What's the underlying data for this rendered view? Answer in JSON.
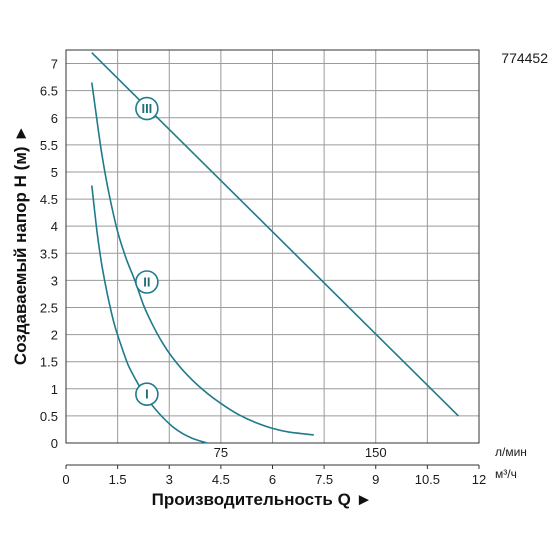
{
  "chart_data": {
    "type": "line",
    "figure_code": "774452",
    "xlabel": "Производительность Q ►",
    "ylabel": "Создаваемый напор H (м) ►",
    "xlim": [
      0,
      12
    ],
    "ylim": [
      0,
      7.25
    ],
    "x_ticks": [
      "0",
      "1.5",
      "3",
      "4.5",
      "6",
      "7.5",
      "9",
      "10.5",
      "12"
    ],
    "y_ticks": [
      "0",
      "0.5",
      "1",
      "1.5",
      "2",
      "2.5",
      "3",
      "3.5",
      "4",
      "4.5",
      "5",
      "5.5",
      "6",
      "6.5",
      "7"
    ],
    "secondary_x_ticks": [
      {
        "label": "75",
        "x": 4.5
      },
      {
        "label": "150",
        "x": 9
      }
    ],
    "secondary_unit": "л/мин",
    "primary_unit": "м³/ч",
    "grid": true,
    "line_color": "#1f7a8c",
    "series": [
      {
        "name": "I",
        "label_at": [
          2.35,
          0.9
        ],
        "points": [
          [
            0.75,
            4.75
          ],
          [
            0.9,
            3.9
          ],
          [
            1.05,
            3.25
          ],
          [
            1.2,
            2.75
          ],
          [
            1.4,
            2.2
          ],
          [
            1.6,
            1.8
          ],
          [
            1.8,
            1.45
          ],
          [
            2.0,
            1.2
          ],
          [
            2.25,
            0.92
          ],
          [
            2.5,
            0.7
          ],
          [
            2.8,
            0.48
          ],
          [
            3.1,
            0.3
          ],
          [
            3.4,
            0.17
          ],
          [
            3.7,
            0.08
          ],
          [
            4.1,
            0.0
          ]
        ]
      },
      {
        "name": "II",
        "label_at": [
          2.35,
          2.97
        ],
        "points": [
          [
            0.75,
            6.65
          ],
          [
            0.9,
            5.95
          ],
          [
            1.05,
            5.3
          ],
          [
            1.25,
            4.6
          ],
          [
            1.5,
            3.9
          ],
          [
            1.75,
            3.4
          ],
          [
            2.0,
            3.0
          ],
          [
            2.25,
            2.55
          ],
          [
            2.5,
            2.2
          ],
          [
            2.8,
            1.85
          ],
          [
            3.1,
            1.57
          ],
          [
            3.5,
            1.27
          ],
          [
            4.0,
            0.97
          ],
          [
            4.5,
            0.73
          ],
          [
            5.0,
            0.53
          ],
          [
            5.5,
            0.38
          ],
          [
            6.0,
            0.27
          ],
          [
            6.5,
            0.2
          ],
          [
            7.2,
            0.15
          ]
        ]
      },
      {
        "name": "III",
        "label_at": [
          2.35,
          6.17
        ],
        "points": [
          [
            0.75,
            7.2
          ],
          [
            11.4,
            0.5
          ]
        ]
      }
    ]
  }
}
